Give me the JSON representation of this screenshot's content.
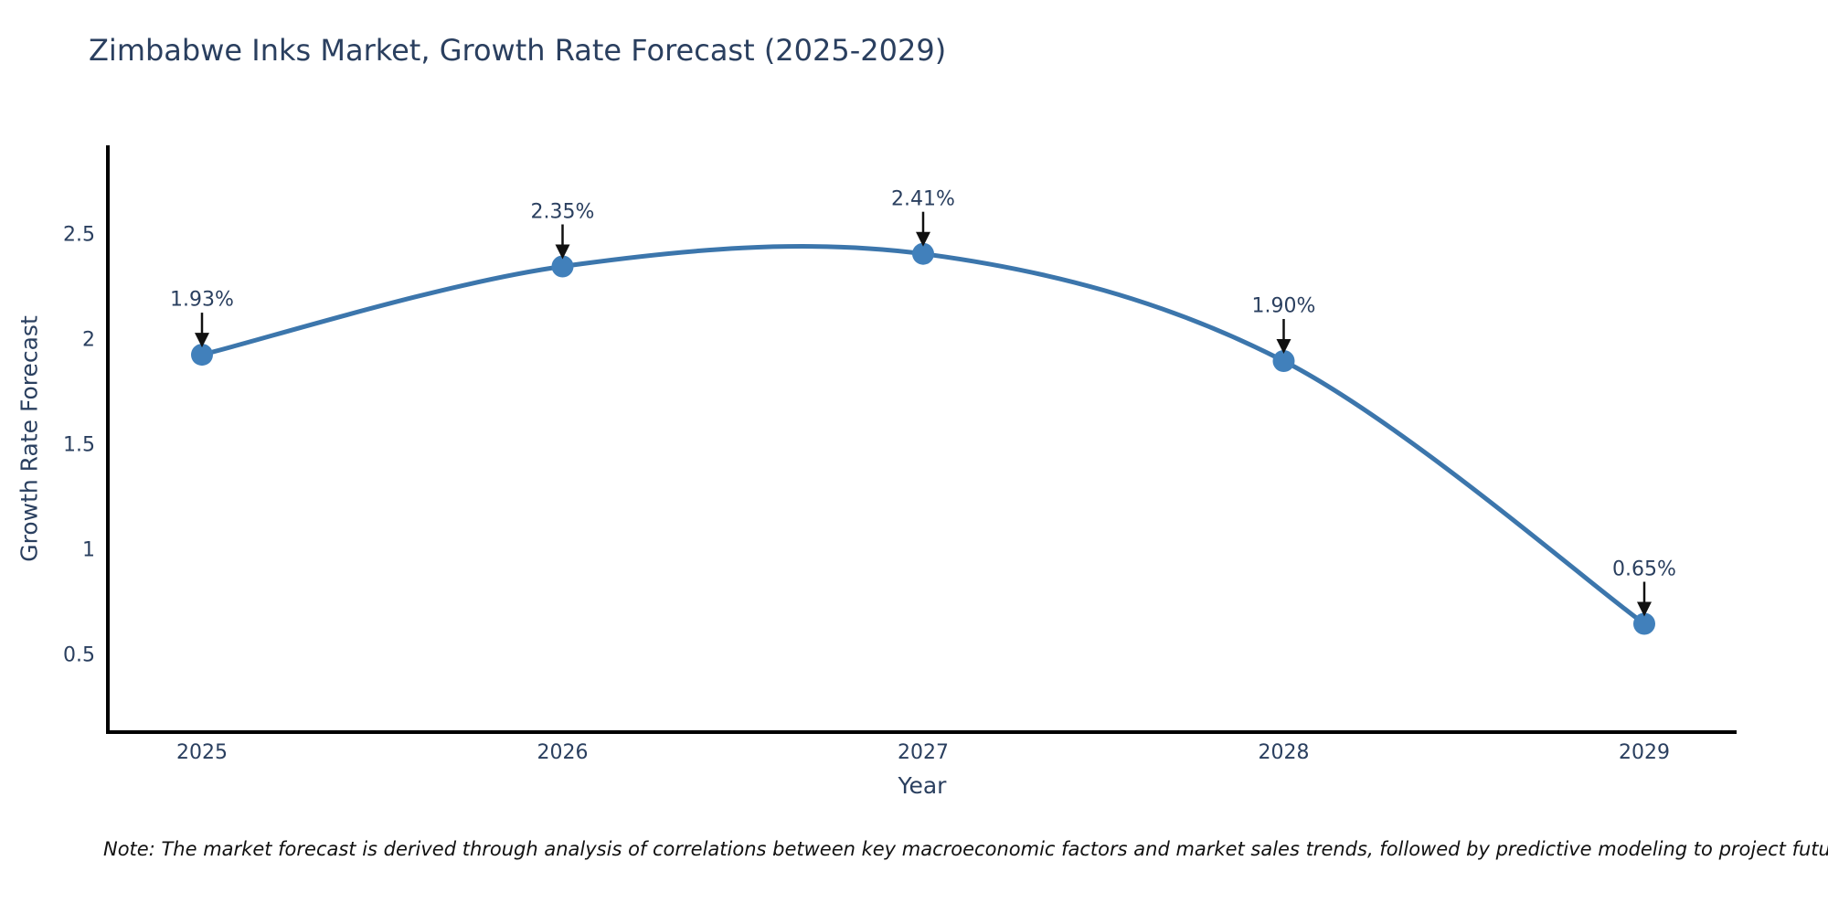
{
  "title": "Zimbabwe Inks Market, Growth Rate Forecast (2025-2029)",
  "note": "Note: The market forecast is derived through analysis of correlations between key macroeconomic factors and market sales trends, followed by predictive modeling to project future sales",
  "colors": {
    "title_text": "#2a3f5f",
    "tick_text": "#2a3f5f",
    "annotation_text": "#2a3f5f",
    "line": "#3c76ac",
    "marker": "#4180bb",
    "axis_line": "#000000",
    "arrow": "#111111",
    "background": "#ffffff"
  },
  "chart_data": {
    "type": "line",
    "title": "Zimbabwe Inks Market, Growth Rate Forecast (2025-2029)",
    "x": [
      2025,
      2026,
      2027,
      2028,
      2029
    ],
    "values": [
      1.93,
      2.35,
      2.41,
      1.9,
      0.65
    ],
    "point_labels": [
      "1.93%",
      "2.35%",
      "2.41%",
      "1.90%",
      "0.65%"
    ],
    "series_name": "Growth Rate Forecast",
    "xlabel": "Year",
    "ylabel": "Growth Rate Forecast",
    "xticks": [
      "2025",
      "2026",
      "2027",
      "2028",
      "2029"
    ],
    "yticks": [
      0.5,
      1,
      1.5,
      2,
      2.5
    ],
    "ylim": [
      0.14,
      2.93
    ],
    "line_shape": "spline",
    "grid": false,
    "legend": false,
    "markers": true,
    "annotation_style": "value label with downward arrow to each point"
  }
}
